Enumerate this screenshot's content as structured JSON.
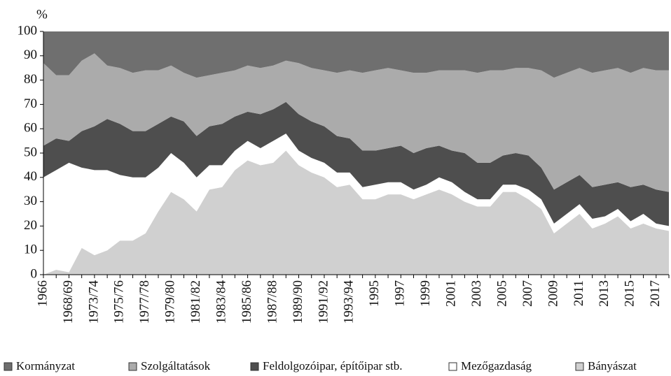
{
  "chart_data": {
    "type": "stacked_area",
    "y_label": "%",
    "categories": [
      "1966",
      null,
      "1968/69",
      null,
      "1973/74",
      null,
      "1975/76",
      null,
      "1977/78",
      null,
      "1979/80",
      null,
      "1981/82",
      null,
      "1983/84",
      null,
      "1985/86",
      null,
      "1987/88",
      null,
      "1989/90",
      null,
      "1991/92",
      null,
      "1993/94",
      null,
      "1995",
      null,
      "1997",
      null,
      "1999",
      null,
      "2001",
      null,
      "2003",
      null,
      "2005",
      null,
      "2007",
      null,
      "2009",
      null,
      "2011",
      null,
      "2013",
      null,
      "2015",
      null,
      "2017",
      null
    ],
    "series": [
      {
        "name": "Kormányzat",
        "color": "#6f6f6f",
        "values": [
          13,
          18,
          18,
          12,
          9,
          14,
          15,
          17,
          16,
          16,
          14,
          17,
          19,
          18,
          17,
          16,
          14,
          15,
          14,
          12,
          13,
          15,
          16,
          17,
          16,
          17,
          16,
          15,
          16,
          17,
          17,
          16,
          16,
          16,
          17,
          16,
          16,
          15,
          15,
          16,
          19,
          17,
          15,
          17,
          16,
          15,
          17,
          15,
          16,
          16
        ]
      },
      {
        "name": "Szolgáltatások",
        "color": "#ababab",
        "values": [
          34,
          26,
          27,
          29,
          30,
          22,
          23,
          24,
          25,
          22,
          21,
          20,
          24,
          21,
          21,
          19,
          19,
          19,
          18,
          17,
          21,
          22,
          23,
          26,
          28,
          32,
          33,
          33,
          31,
          33,
          31,
          31,
          33,
          34,
          37,
          38,
          35,
          35,
          36,
          40,
          46,
          45,
          44,
          47,
          47,
          47,
          47,
          48,
          49,
          50
        ]
      },
      {
        "name": "Feldolgozóipar, építőipar stb.",
        "color": "#4e4e4e",
        "values": [
          13,
          13,
          9,
          15,
          18,
          21,
          21,
          19,
          19,
          18,
          15,
          17,
          17,
          16,
          17,
          14,
          12,
          14,
          13,
          13,
          15,
          15,
          15,
          15,
          14,
          15,
          14,
          14,
          15,
          15,
          15,
          13,
          13,
          16,
          15,
          15,
          12,
          13,
          14,
          13,
          14,
          13,
          12,
          13,
          13,
          11,
          14,
          12,
          14,
          14
        ]
      },
      {
        "name": "Mezőgazdaság",
        "color": "#ffffff",
        "values": [
          40,
          41,
          45,
          33,
          35,
          33,
          27,
          26,
          23,
          18,
          16,
          15,
          14,
          10,
          9,
          8,
          8,
          7,
          9,
          7,
          6,
          6,
          6,
          6,
          5,
          5,
          6,
          5,
          5,
          4,
          4,
          5,
          5,
          4,
          3,
          3,
          3,
          3,
          4,
          4,
          4,
          4,
          4,
          4,
          3,
          3,
          3,
          4,
          2,
          2
        ]
      },
      {
        "name": "Bányászat",
        "color": "#d0d0d0",
        "values": [
          0,
          2,
          1,
          11,
          8,
          10,
          14,
          14,
          17,
          26,
          34,
          31,
          26,
          35,
          36,
          43,
          47,
          45,
          46,
          51,
          45,
          42,
          40,
          36,
          37,
          31,
          31,
          33,
          33,
          31,
          33,
          35,
          33,
          30,
          28,
          28,
          34,
          34,
          31,
          27,
          17,
          21,
          25,
          19,
          21,
          24,
          19,
          21,
          19,
          18
        ]
      }
    ],
    "stacked": true,
    "ylim": [
      0,
      100
    ],
    "yticks": [
      0,
      10,
      20,
      30,
      40,
      50,
      60,
      70,
      80,
      90,
      100
    ],
    "legend": "bottom"
  }
}
